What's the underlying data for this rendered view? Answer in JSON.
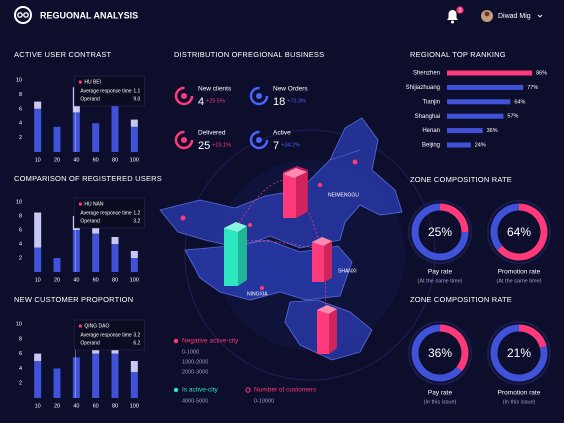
{
  "header": {
    "title": "REGUONAL ANALYSIS",
    "notifications": "3",
    "user": "Diwad Mig"
  },
  "map": {
    "title": "DISTRIBUTION OFREGIONAL BUSINESS",
    "kpis": [
      {
        "label": "New clients",
        "value": "4",
        "change": "+25.5%",
        "color": "#ff3a7a"
      },
      {
        "label": "New Orders",
        "value": "18",
        "change": "+72.3%",
        "color": "#4a63ff"
      },
      {
        "label": "Delivered",
        "value": "25",
        "change": "+23.1%",
        "color": "#ff3a7a"
      },
      {
        "label": "Active",
        "value": "7",
        "change": "+34.2%",
        "color": "#4a63ff"
      }
    ],
    "places": [
      "NEIMENGGU",
      "SHANXI",
      "NINGXIA"
    ],
    "legend": [
      {
        "label": "Negative active-city",
        "color": "#ff3a7a",
        "ranges": [
          "0-1000",
          "1000-2000",
          "2000-3000"
        ]
      },
      {
        "label": "Is active-city",
        "color": "#2ee6c0",
        "ranges": [
          "4000-5000"
        ]
      },
      {
        "label": "Number of customers",
        "color": "#ff3a7a",
        "ranges": [
          "0-10000"
        ]
      }
    ]
  },
  "chart_data": [
    {
      "type": "bar",
      "title": "ACTIVE USER CONTRAST",
      "categories": [
        "10",
        "20",
        "40",
        "60",
        "80",
        "100"
      ],
      "series": [
        {
          "color": "#3f52d8",
          "values": [
            6,
            3.5,
            5.5,
            4,
            6.5,
            3.5
          ]
        },
        {
          "color": "#c7c9f2",
          "values": [
            1,
            0,
            3.5,
            0,
            0,
            1
          ]
        }
      ],
      "ylim": [
        0,
        10
      ],
      "yticks": [
        2,
        4,
        6,
        8,
        10
      ],
      "grid": false,
      "tooltip": {
        "title": "HU BEI",
        "rows": [
          {
            "label": "Average response time",
            "value": "1.1"
          },
          {
            "label": "Operand",
            "value": "9.0"
          }
        ]
      }
    },
    {
      "type": "bar",
      "title": "COMPARISON OF REGISTERED USERS",
      "categories": [
        "10",
        "20",
        "40",
        "60",
        "80",
        "100"
      ],
      "series": [
        {
          "color": "#3f52d8",
          "values": [
            3.5,
            2,
            6,
            5.5,
            4,
            2
          ]
        },
        {
          "color": "#c7c9f2",
          "values": [
            5,
            0,
            2,
            2,
            1,
            1
          ]
        }
      ],
      "ylim": [
        0,
        10
      ],
      "yticks": [
        2,
        4,
        6,
        8,
        10
      ],
      "grid": false,
      "tooltip": {
        "title": "HU NAN",
        "rows": [
          {
            "label": "Average response time",
            "value": "1.2"
          },
          {
            "label": "Operand",
            "value": "3.2"
          }
        ]
      }
    },
    {
      "type": "bar",
      "title": "NEW CUSTOMER PROPORTION",
      "categories": [
        "10",
        "20",
        "40",
        "60",
        "80",
        "100"
      ],
      "series": [
        {
          "color": "#3f52d8",
          "values": [
            5,
            4,
            5.5,
            6,
            6,
            3.5
          ]
        },
        {
          "color": "#c7c9f2",
          "values": [
            1,
            0,
            0,
            1,
            2,
            1.5
          ]
        }
      ],
      "ylim": [
        0,
        10
      ],
      "yticks": [
        2,
        4,
        6,
        8,
        10
      ],
      "grid": false,
      "tooltip": {
        "title": "QING DAO",
        "rows": [
          {
            "label": "Average response time",
            "value": "3.2"
          },
          {
            "label": "Operand",
            "value": "6.2"
          }
        ]
      }
    },
    {
      "type": "hbar",
      "title": "REGIONAL TOP RANKING",
      "categories": [
        "Shenzhen",
        "Shijiazhuang",
        "Tianjin",
        "Shanghai",
        "Henan",
        "Beijing"
      ],
      "values": [
        86,
        77,
        64,
        57,
        36,
        24
      ],
      "value_labels": [
        "86%",
        "77%",
        "64%",
        "57%",
        "36%",
        "24%"
      ],
      "colors": [
        "#ff3a7a",
        "#3f52d8",
        "#3f52d8",
        "#3f52d8",
        "#3f52d8",
        "#3f52d8"
      ],
      "xlim": [
        0,
        100
      ]
    },
    {
      "type": "donut",
      "title": "ZONE COMPOSITION RATE",
      "categories": [
        "Pay rate",
        "Promotion rate"
      ],
      "values": [
        25,
        64
      ],
      "value_labels": [
        "25%",
        "64%"
      ],
      "notes": [
        "(At the same time)",
        "(At the same time)"
      ],
      "color": "#ff3a7a",
      "track_color": "#3f52d8"
    },
    {
      "type": "donut",
      "title": "ZONE COMPOSITION RATE",
      "categories": [
        "Pay rate",
        "Promotion rate"
      ],
      "values": [
        36,
        21
      ],
      "value_labels": [
        "36%",
        "21%"
      ],
      "notes": [
        "(In this issue)",
        "(In this issue)"
      ],
      "color": "#ff3a7a",
      "track_color": "#3f52d8"
    }
  ]
}
